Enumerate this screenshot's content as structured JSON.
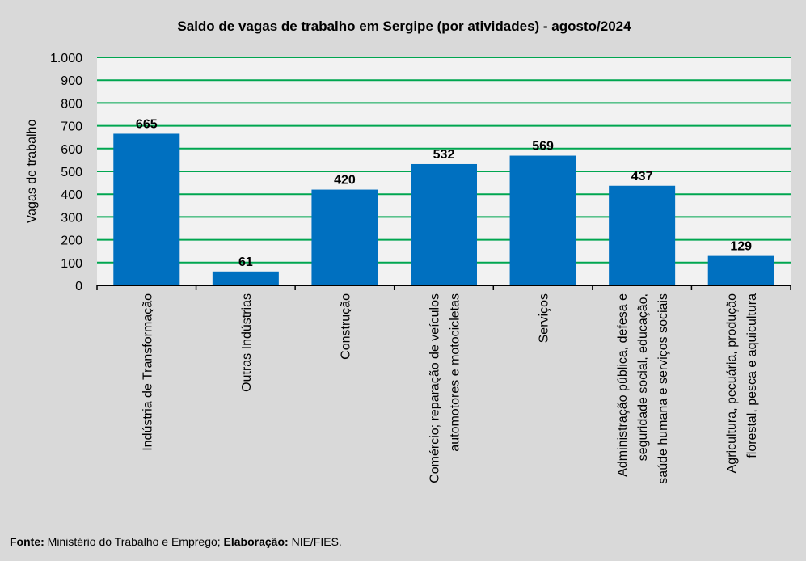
{
  "chart_data": {
    "type": "bar",
    "title": "Saldo de vagas de trabalho em Sergipe (por atividades) - agosto/2024",
    "xlabel": "",
    "ylabel": "Vagas de trabalho",
    "ylim": [
      0,
      1000
    ],
    "yticks": [
      0,
      100,
      200,
      300,
      400,
      500,
      600,
      700,
      800,
      900,
      1000
    ],
    "ytick_labels": [
      "0",
      "100",
      "200",
      "300",
      "400",
      "500",
      "600",
      "700",
      "800",
      "900",
      "1.000"
    ],
    "grid": true,
    "categories": [
      [
        "Indústria de Transformação"
      ],
      [
        "Outras Indústrias"
      ],
      [
        "Construção"
      ],
      [
        "Comércio; reparação de veículos",
        "automotores e motocicletas"
      ],
      [
        "Serviços"
      ],
      [
        "Administração pública, defesa e",
        "seguridade social, educação,",
        "saúde humana e serviços sociais"
      ],
      [
        "Agricultura, pecuária, produção",
        "florestal, pesca e aquicultura"
      ]
    ],
    "values": [
      665,
      61,
      420,
      532,
      569,
      437,
      129
    ],
    "data_labels": [
      "665",
      "61",
      "420",
      "532",
      "569",
      "437",
      "129"
    ],
    "colors": {
      "bar": "#0070c0",
      "grid": "#00a650",
      "plot_bg": "#f2f2f2",
      "bg": "#d9d9d9"
    }
  },
  "footer": {
    "source_label": "Fonte:",
    "source_text": " Ministério do Trabalho e Emprego; ",
    "elab_label": "Elaboração:",
    "elab_text": " NIE/FIES."
  }
}
